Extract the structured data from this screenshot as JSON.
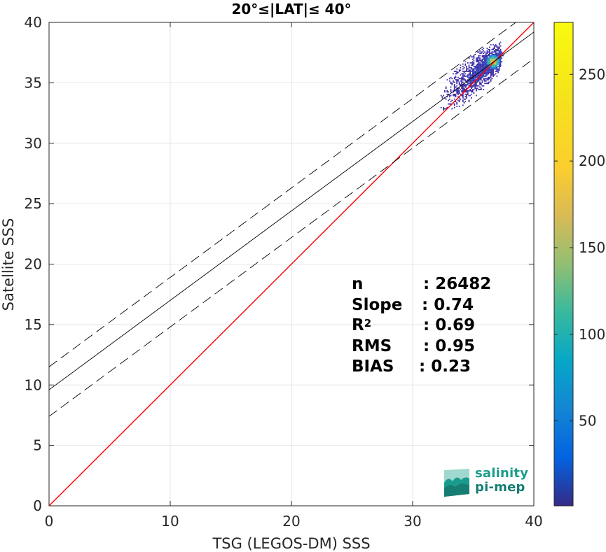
{
  "chart_data": {
    "type": "heatmap",
    "title": "20°≤|LAT|≤ 40°",
    "xlabel": "TSG (LEGOS-DM) SSS",
    "ylabel": "Satellite SSS",
    "xlim": [
      0,
      40
    ],
    "ylim": [
      0,
      40
    ],
    "xticks": [
      "0",
      "10",
      "20",
      "30",
      "40"
    ],
    "yticks": [
      "0",
      "5",
      "10",
      "15",
      "20",
      "25",
      "30",
      "35",
      "40"
    ],
    "grid": true,
    "colorbar": {
      "colormap": "parula",
      "range": [
        1,
        280
      ],
      "ticks": [
        "50",
        "100",
        "150",
        "200",
        "250"
      ]
    },
    "density_cloud": {
      "x_range": [
        30.0,
        37.5
      ],
      "y_range": [
        30.5,
        38.5
      ],
      "peak": {
        "x": 36.6,
        "y": 36.7,
        "count": 280
      }
    },
    "lines": [
      {
        "name": "1:1",
        "color": "#ff0000",
        "style": "solid",
        "x": [
          0,
          40
        ],
        "y": [
          0,
          40
        ]
      },
      {
        "name": "fit",
        "color": "#000000",
        "style": "solid",
        "intercept": 9.6,
        "slope": 0.74
      },
      {
        "name": "fit+",
        "color": "#000000",
        "style": "dashed",
        "intercept": 11.5,
        "slope": 0.74
      },
      {
        "name": "fit-",
        "color": "#000000",
        "style": "dashed",
        "intercept": 7.4,
        "slope": 0.74
      }
    ]
  },
  "stats": {
    "n_label": "n",
    "n_value": ": 26482",
    "slope_label": "Slope",
    "slope_value": ": 0.74",
    "r2_label": "R",
    "r2_sup": "2",
    "r2_value": ": 0.69",
    "rms_label": "RMS",
    "rms_value": ": 0.95",
    "bias_label": "BIAS",
    "bias_value": ": 0.23"
  },
  "logo": {
    "line1": "salinity",
    "line2": "pi-mep",
    "colors": [
      "#1a9c8c",
      "#157d72",
      "#9fd8cf"
    ]
  }
}
